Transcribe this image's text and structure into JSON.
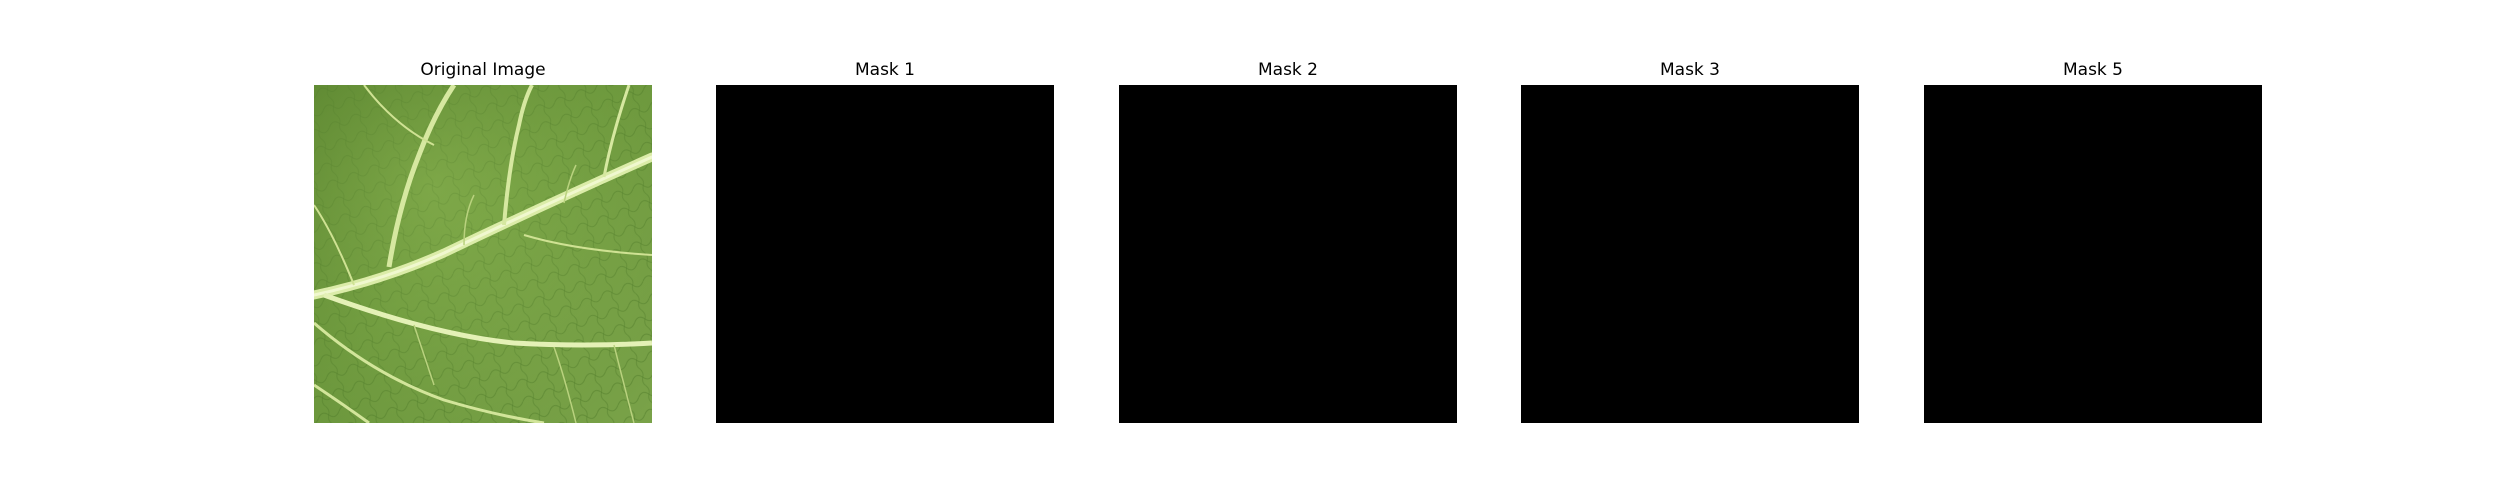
{
  "figure": {
    "panels": [
      {
        "title": "Original Image",
        "kind": "photo",
        "subject": "leaf"
      },
      {
        "title": "Mask 1",
        "kind": "mask",
        "fill_color": "#000000"
      },
      {
        "title": "Mask 2",
        "kind": "mask",
        "fill_color": "#000000"
      },
      {
        "title": "Mask 3",
        "kind": "mask",
        "fill_color": "#000000"
      },
      {
        "title": "Mask 5",
        "kind": "mask",
        "fill_color": "#000000"
      }
    ]
  },
  "colors": {
    "background": "#ffffff",
    "mask": "#000000",
    "leaf_green": "#6f9a3c",
    "vein": "#e2f0b2"
  }
}
